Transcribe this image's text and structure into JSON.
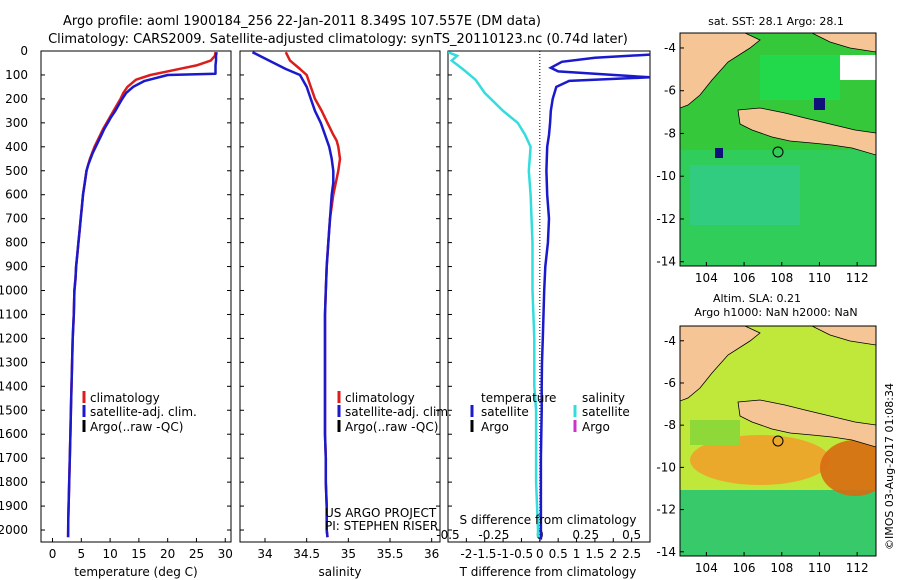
{
  "title_line1": "Argo profile: aoml 1900184_256 22-Jan-2011 8.349S 107.557E (DM data)",
  "title_line2": "Climatology: CARS2009. Satellite-adjusted climatology: synTS_20110123.nc (0.74d later)",
  "colors": {
    "climatology": "#dd1c1c",
    "satellite": "#1a1acc",
    "argo": "#000000",
    "s_satellite": "#33dddd",
    "s_argo": "#cc33cc",
    "land": "#f5c595"
  },
  "depth_axis": {
    "range": [
      0,
      2050
    ],
    "ticks": [
      0,
      100,
      200,
      300,
      400,
      500,
      600,
      700,
      800,
      900,
      1000,
      1100,
      1200,
      1300,
      1400,
      1500,
      1600,
      1700,
      1800,
      1900,
      2000
    ]
  },
  "panel_temp": {
    "xlabel": "temperature (deg C)",
    "xlim": [
      -2,
      31
    ],
    "xticks": [
      0,
      5,
      10,
      15,
      20,
      25,
      30
    ],
    "legend": [
      "climatology",
      "satellite-adj. clim.",
      "Argo(..raw -QC)"
    ]
  },
  "panel_sal": {
    "xlabel": "salinity",
    "xlim": [
      33.7,
      36.1
    ],
    "xticks": [
      34,
      34.5,
      35,
      35.5,
      36
    ],
    "legend": [
      "climatology",
      "satellite-adj. clim.",
      "Argo(..raw -QC)"
    ],
    "credit1": "US ARGO PROJECT",
    "credit2": "PI: STEPHEN RISER"
  },
  "panel_diff": {
    "xlabel_t": "T difference from climatology",
    "xlabel_s": "S difference from climatology",
    "tlim": [
      -2.5,
      3
    ],
    "tticks": [
      -2,
      -1.5,
      -1,
      -0.5,
      0,
      0.5,
      1,
      1.5,
      2,
      2.5
    ],
    "t_ticklabels": [
      "-2",
      "-1.5",
      "-1",
      "-0.5",
      "0",
      "0.5",
      "1",
      "1.5",
      "2",
      "2.5"
    ],
    "sticks": [
      -0.5,
      -0.25,
      0,
      0.25,
      0.5
    ],
    "s_ticklabels": [
      "-0.5",
      "-0.25",
      "0",
      "0.25",
      "0.5"
    ],
    "legend_t_head": "temperature",
    "legend_t": [
      "satellite",
      "Argo"
    ],
    "legend_s_head": "salinity",
    "legend_s": [
      "satellite",
      "Argo"
    ]
  },
  "map_sst": {
    "title": "sat. SST: 28.1  Argo: 28.1",
    "xticks": [
      104,
      106,
      108,
      110,
      112
    ],
    "yticks": [
      -4,
      -6,
      -8,
      -10,
      -12,
      -14
    ],
    "float_lon": 107.557,
    "float_lat": -8.349
  },
  "map_sla": {
    "title1": "Altim. SLA: 0.21",
    "title2": "Argo h1000: NaN h2000: NaN",
    "xticks": [
      104,
      106,
      108,
      110,
      112
    ],
    "yticks": [
      -4,
      -6,
      -8,
      -10,
      -12,
      -14
    ],
    "float_lon": 107.557,
    "float_lat": -8.349
  },
  "footer": "©IMOS 03-Aug-2017 01:08:34",
  "chart_data": [
    {
      "type": "line",
      "title": "",
      "xlabel": "temperature (deg C)",
      "ylabel": "",
      "xlim": [
        -2,
        31
      ],
      "ylim": [
        2050,
        0
      ],
      "series": [
        {
          "name": "climatology",
          "x": [
            28.3,
            28.2,
            27.5,
            25,
            21,
            17,
            14.5,
            13,
            12.3,
            11.8,
            11.2,
            10.6,
            10,
            9.4,
            8.8,
            8.3,
            7.8,
            7.3,
            6.9,
            6.5,
            6.2,
            5.9,
            5.6,
            5.3,
            5.1,
            4.9,
            4.7,
            4.5,
            4.3,
            4.1,
            4,
            3.8,
            3.7,
            3.5,
            3.4,
            3.3,
            3.2,
            3.1,
            3,
            2.95,
            2.9,
            2.85,
            2.8,
            2.75,
            2.7
          ],
          "y": [
            5,
            20,
            40,
            60,
            80,
            100,
            120,
            150,
            175,
            200,
            225,
            250,
            275,
            300,
            325,
            350,
            375,
            400,
            425,
            450,
            475,
            500,
            550,
            600,
            650,
            700,
            750,
            800,
            850,
            900,
            950,
            1000,
            1100,
            1200,
            1300,
            1400,
            1500,
            1600,
            1700,
            1750,
            1800,
            1850,
            1900,
            1950,
            2030
          ]
        },
        {
          "name": "satellite-adj. clim.",
          "x": [
            28.5,
            28.4,
            28.4,
            28.3,
            28.3,
            20,
            16,
            14,
            12.8,
            12.1,
            11.5,
            10.9,
            10.2,
            9.6,
            9,
            8.5,
            8,
            7.5,
            7,
            6.6,
            6.2,
            5.9,
            5.6,
            5.3,
            5.1,
            4.9,
            4.7,
            4.5,
            4.3,
            4.1,
            4,
            3.8,
            3.7,
            3.5,
            3.4,
            3.3,
            3.2,
            3.1,
            3,
            2.95,
            2.9,
            2.85,
            2.8,
            2.75,
            2.7
          ],
          "y": [
            5,
            20,
            40,
            60,
            95,
            100,
            125,
            150,
            175,
            200,
            225,
            250,
            275,
            300,
            325,
            350,
            375,
            400,
            425,
            450,
            475,
            500,
            550,
            600,
            650,
            700,
            750,
            800,
            850,
            900,
            950,
            1000,
            1100,
            1200,
            1300,
            1400,
            1500,
            1600,
            1700,
            1750,
            1800,
            1850,
            1900,
            1950,
            2030
          ]
        }
      ]
    },
    {
      "type": "line",
      "title": "",
      "xlabel": "salinity",
      "ylabel": "",
      "xlim": [
        33.7,
        36.1
      ],
      "ylim": [
        2050,
        0
      ],
      "series": [
        {
          "name": "climatology",
          "x": [
            34.25,
            34.3,
            34.42,
            34.5,
            34.55,
            34.6,
            34.68,
            34.75,
            34.82,
            34.86,
            34.88,
            34.9,
            34.88,
            34.85,
            34.82,
            34.78,
            34.76,
            34.74,
            34.73,
            34.72,
            34.72,
            34.72,
            34.72,
            34.72,
            34.72,
            34.73,
            34.73,
            34.74,
            34.74,
            34.75
          ],
          "y": [
            5,
            40,
            75,
            100,
            150,
            200,
            250,
            300,
            350,
            375,
            400,
            450,
            500,
            550,
            600,
            700,
            800,
            900,
            1000,
            1100,
            1200,
            1300,
            1400,
            1500,
            1600,
            1700,
            1800,
            1900,
            2000,
            2030
          ]
        },
        {
          "name": "satellite-adj. clim.",
          "x": [
            33.85,
            34.05,
            34.25,
            34.42,
            34.5,
            34.55,
            34.6,
            34.67,
            34.72,
            34.77,
            34.8,
            34.82,
            34.82,
            34.8,
            34.78,
            34.76,
            34.74,
            34.73,
            34.72,
            34.72,
            34.72,
            34.72,
            34.72,
            34.72,
            34.73,
            34.73,
            34.74,
            34.74,
            34.75
          ],
          "y": [
            5,
            40,
            75,
            100,
            150,
            200,
            250,
            300,
            350,
            400,
            450,
            500,
            550,
            600,
            700,
            800,
            900,
            1000,
            1100,
            1200,
            1300,
            1400,
            1500,
            1600,
            1700,
            1800,
            1900,
            2000,
            2030
          ]
        }
      ]
    },
    {
      "type": "line",
      "title": "",
      "xlabel": "T difference from climatology",
      "ylabel": "",
      "xlim": [
        -2.5,
        3
      ],
      "ylim": [
        2050,
        0
      ],
      "series": [
        {
          "name": "temperature satellite",
          "x": [
            3,
            1.5,
            0.6,
            0.3,
            0.5,
            1.5,
            3,
            0.8,
            0.45,
            0.35,
            0.3,
            0.28,
            0.25,
            0.2,
            0.18,
            0.2,
            0.25,
            0.22,
            0.15,
            0.12,
            0.1,
            0.08,
            0.06,
            0.05,
            0.05,
            0.04,
            0.03,
            0.03,
            0.03,
            0.03,
            0.03,
            0.03
          ],
          "y": [
            15,
            28,
            45,
            70,
            85,
            95,
            110,
            125,
            150,
            200,
            250,
            300,
            350,
            400,
            500,
            600,
            700,
            800,
            900,
            1000,
            1100,
            1200,
            1300,
            1400,
            1500,
            1600,
            1700,
            1800,
            1900,
            2000,
            2030,
            2040
          ]
        },
        {
          "name": "salinity satellite",
          "x": [
            -0.5,
            -0.45,
            -0.48,
            -0.42,
            -0.35,
            -0.3,
            -0.2,
            -0.12,
            -0.08,
            -0.05,
            -0.06,
            -0.05,
            -0.04,
            -0.04,
            -0.03,
            -0.03,
            -0.02,
            -0.02,
            -0.02,
            -0.01,
            -0.01
          ],
          "y": [
            5,
            20,
            40,
            75,
            120,
            175,
            250,
            300,
            350,
            400,
            500,
            600,
            800,
            1000,
            1200,
            1400,
            1500,
            1600,
            1800,
            2000,
            2030
          ]
        }
      ]
    }
  ]
}
